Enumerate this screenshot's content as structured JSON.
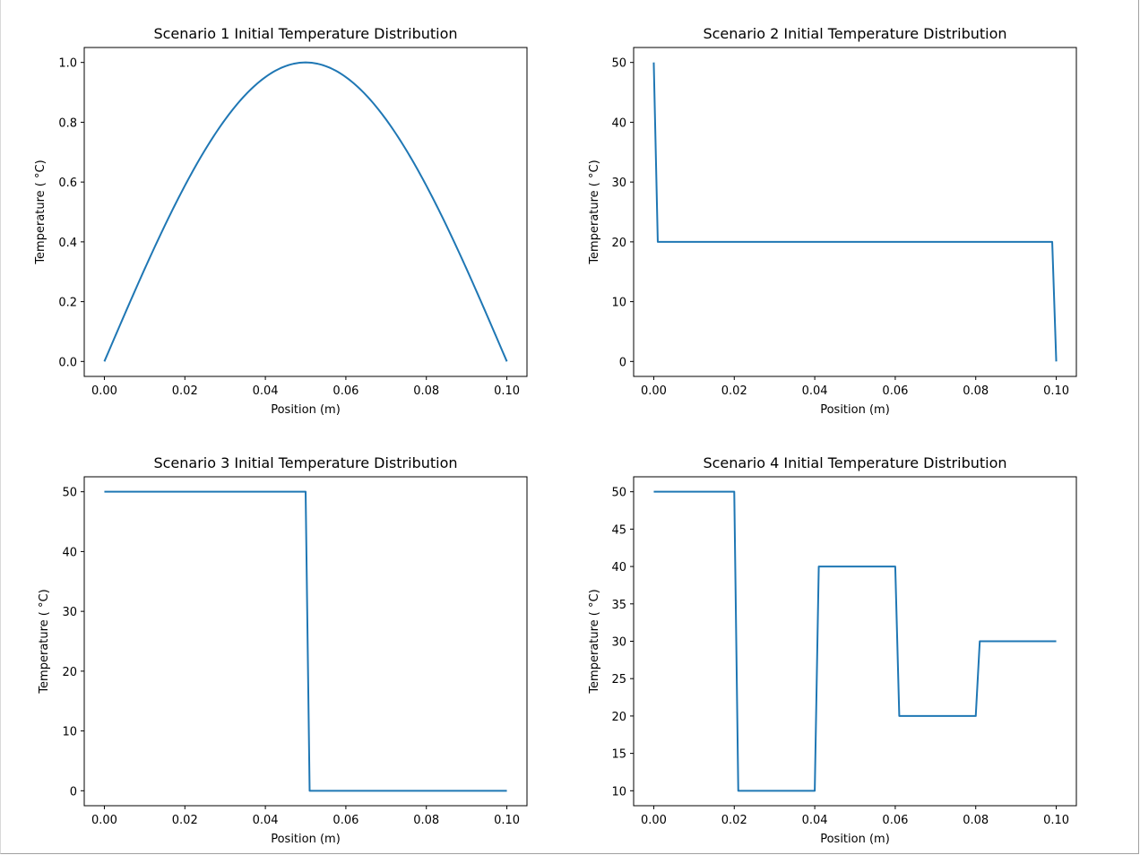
{
  "line_color": "#1f77b4",
  "chart_data": [
    {
      "type": "line",
      "title": "Scenario 1 Initial Temperature Distribution",
      "xlabel": "Position (m)",
      "ylabel": "Temperature ($^\\circ$C)",
      "ylabel_display": "Temperature ( °C)",
      "xlim": [
        -0.005,
        0.105
      ],
      "ylim": [
        -0.05,
        1.05
      ],
      "xticks": [
        0.0,
        0.02,
        0.04,
        0.06,
        0.08,
        0.1
      ],
      "xtick_labels": [
        "0.00",
        "0.02",
        "0.04",
        "0.06",
        "0.08",
        "0.10"
      ],
      "yticks": [
        0.0,
        0.2,
        0.4,
        0.6,
        0.8,
        1.0
      ],
      "ytick_labels": [
        "0.0",
        "0.2",
        "0.4",
        "0.6",
        "0.8",
        "1.0"
      ],
      "x": [
        0.0,
        0.005,
        0.01,
        0.015,
        0.02,
        0.025,
        0.03,
        0.035,
        0.04,
        0.045,
        0.05,
        0.055,
        0.06,
        0.065,
        0.07,
        0.075,
        0.08,
        0.085,
        0.09,
        0.095,
        0.1
      ],
      "y": [
        0.0,
        0.156,
        0.309,
        0.454,
        0.588,
        0.707,
        0.809,
        0.891,
        0.951,
        0.988,
        1.0,
        0.988,
        0.951,
        0.891,
        0.809,
        0.707,
        0.588,
        0.454,
        0.309,
        0.156,
        0.0
      ],
      "grid": false
    },
    {
      "type": "line",
      "title": "Scenario 2 Initial Temperature Distribution",
      "xlabel": "Position (m)",
      "ylabel": "Temperature ($^\\circ$C)",
      "ylabel_display": "Temperature ( °C)",
      "xlim": [
        -0.005,
        0.105
      ],
      "ylim": [
        -2.5,
        52.5
      ],
      "xticks": [
        0.0,
        0.02,
        0.04,
        0.06,
        0.08,
        0.1
      ],
      "xtick_labels": [
        "0.00",
        "0.02",
        "0.04",
        "0.06",
        "0.08",
        "0.10"
      ],
      "yticks": [
        0,
        10,
        20,
        30,
        40,
        50
      ],
      "ytick_labels": [
        "0",
        "10",
        "20",
        "30",
        "40",
        "50"
      ],
      "x": [
        0.0,
        0.001,
        0.099,
        0.1
      ],
      "y": [
        50,
        20,
        20,
        0
      ],
      "grid": false
    },
    {
      "type": "line",
      "title": "Scenario 3 Initial Temperature Distribution",
      "xlabel": "Position (m)",
      "ylabel": "Temperature ($^\\circ$C)",
      "ylabel_display": "Temperature ( °C)",
      "xlim": [
        -0.005,
        0.105
      ],
      "ylim": [
        -2.5,
        52.5
      ],
      "xticks": [
        0.0,
        0.02,
        0.04,
        0.06,
        0.08,
        0.1
      ],
      "xtick_labels": [
        "0.00",
        "0.02",
        "0.04",
        "0.06",
        "0.08",
        "0.10"
      ],
      "yticks": [
        0,
        10,
        20,
        30,
        40,
        50
      ],
      "ytick_labels": [
        "0",
        "10",
        "20",
        "30",
        "40",
        "50"
      ],
      "x": [
        0.0,
        0.05,
        0.051,
        0.1
      ],
      "y": [
        50,
        50,
        0,
        0
      ],
      "grid": false
    },
    {
      "type": "line",
      "title": "Scenario 4 Initial Temperature Distribution",
      "xlabel": "Position (m)",
      "ylabel": "Temperature ($^\\circ$C)",
      "ylabel_display": "Temperature ( °C)",
      "xlim": [
        -0.005,
        0.105
      ],
      "ylim": [
        8,
        52
      ],
      "xticks": [
        0.0,
        0.02,
        0.04,
        0.06,
        0.08,
        0.1
      ],
      "xtick_labels": [
        "0.00",
        "0.02",
        "0.04",
        "0.06",
        "0.08",
        "0.10"
      ],
      "yticks": [
        10,
        15,
        20,
        25,
        30,
        35,
        40,
        45,
        50
      ],
      "ytick_labels": [
        "10",
        "15",
        "20",
        "25",
        "30",
        "35",
        "40",
        "45",
        "50"
      ],
      "x": [
        0.0,
        0.02,
        0.021,
        0.04,
        0.041,
        0.06,
        0.061,
        0.08,
        0.081,
        0.1
      ],
      "y": [
        50,
        50,
        10,
        10,
        40,
        40,
        20,
        20,
        30,
        30
      ],
      "grid": false
    }
  ]
}
